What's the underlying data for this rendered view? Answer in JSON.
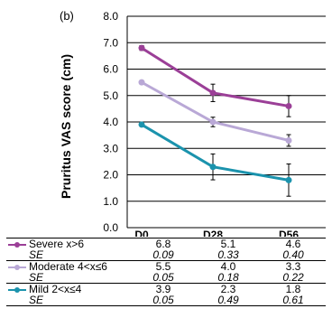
{
  "panel_label": "(b)",
  "chart_data": {
    "type": "line",
    "ylabel": "Pruritus VAS score  (cm)",
    "ylim": [
      0,
      8
    ],
    "yticks": [
      "0.0",
      "1.0",
      "2.0",
      "3.0",
      "4.0",
      "5.0",
      "6.0",
      "7.0",
      "8.0"
    ],
    "categories": [
      "D0",
      "D28",
      "D56"
    ],
    "grid": "horizontal",
    "series": [
      {
        "name": "Severe x>6",
        "color": "#9b3f97",
        "values": [
          6.8,
          5.1,
          4.6
        ],
        "values_text": [
          "6.8",
          "5.1",
          "4.6"
        ],
        "se": [
          0.09,
          0.33,
          0.4
        ],
        "se_text": [
          "0.09",
          "0.33",
          "0.40"
        ]
      },
      {
        "name": "Moderate 4<x≤6",
        "color": "#b9a8d6",
        "values": [
          5.5,
          4.0,
          3.3
        ],
        "values_text": [
          "5.5",
          "4.0",
          "3.3"
        ],
        "se": [
          0.05,
          0.18,
          0.22
        ],
        "se_text": [
          "0.05",
          "0.18",
          "0.22"
        ]
      },
      {
        "name": "Mild 2<x≤4",
        "color": "#1b93ad",
        "values": [
          3.9,
          2.3,
          1.8
        ],
        "values_text": [
          "3.9",
          "2.3",
          "1.8"
        ],
        "se": [
          0.05,
          0.49,
          0.61
        ],
        "se_text": [
          "0.05",
          "0.49",
          "0.61"
        ]
      }
    ]
  },
  "table": {
    "se_label": "SE"
  }
}
